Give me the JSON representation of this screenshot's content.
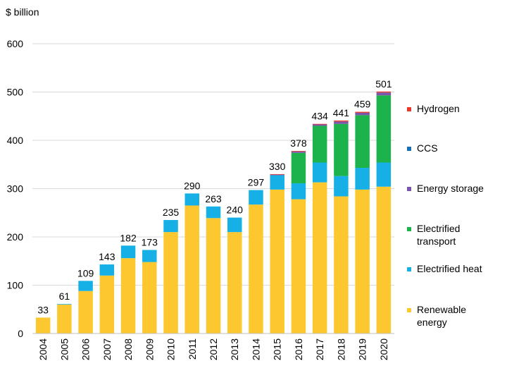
{
  "chart_data": {
    "type": "bar",
    "stacked": true,
    "ylabel": "$ billion",
    "xlabel": "",
    "ylim": [
      0,
      600
    ],
    "yticks": [
      0,
      100,
      200,
      300,
      400,
      500,
      600
    ],
    "grid": true,
    "legend_position": "right",
    "categories": [
      "2004",
      "2005",
      "2006",
      "2007",
      "2008",
      "2009",
      "2010",
      "2011",
      "2012",
      "2013",
      "2014",
      "2015",
      "2016",
      "2017",
      "2018",
      "2019",
      "2020"
    ],
    "totals": [
      33,
      61,
      109,
      143,
      182,
      173,
      235,
      290,
      263,
      240,
      297,
      330,
      378,
      434,
      441,
      459,
      501
    ],
    "series": [
      {
        "name": "Renewable energy",
        "color": "#fdc82f",
        "values": [
          33,
          60,
          88,
          120,
          156,
          148,
          210,
          265,
          239,
          210,
          267,
          298,
          278,
          313,
          284,
          298,
          304
        ]
      },
      {
        "name": "Electrified heat",
        "color": "#17b0e6",
        "values": [
          0,
          1,
          21,
          23,
          26,
          25,
          25,
          25,
          24,
          30,
          30,
          30,
          33,
          41,
          42,
          45,
          50
        ]
      },
      {
        "name": "Electrified transport",
        "color": "#1db34c",
        "values": [
          0,
          0,
          0,
          0,
          0,
          0,
          0,
          0,
          0,
          0,
          0,
          0,
          63,
          76,
          108,
          109,
          139
        ]
      },
      {
        "name": "Energy storage",
        "color": "#7a55a8",
        "values": [
          0,
          0,
          0,
          0,
          0,
          0,
          0,
          0,
          0,
          0,
          0,
          1,
          3,
          3,
          5,
          5,
          6
        ]
      },
      {
        "name": "CCS",
        "color": "#1a6fb5",
        "values": [
          0,
          0,
          0,
          0,
          0,
          0,
          0,
          0,
          0,
          0,
          0,
          0,
          0,
          0,
          0,
          0,
          0
        ]
      },
      {
        "name": "Hydrogen",
        "color": "#e8382b",
        "values": [
          0,
          0,
          0,
          0,
          0,
          0,
          0,
          0,
          0,
          0,
          0,
          1,
          1,
          1,
          2,
          2,
          2
        ]
      }
    ]
  },
  "legend": {
    "items": [
      {
        "label": "Hydrogen",
        "color": "#e8382b"
      },
      {
        "label": "CCS",
        "color": "#1a6fb5"
      },
      {
        "label": "Energy storage",
        "color": "#7a55a8"
      },
      {
        "label": "Electrified\ntransport",
        "color": "#1db34c"
      },
      {
        "label": "Electrified heat",
        "color": "#17b0e6"
      },
      {
        "label": "Renewable\nenergy",
        "color": "#fdc82f"
      }
    ]
  }
}
